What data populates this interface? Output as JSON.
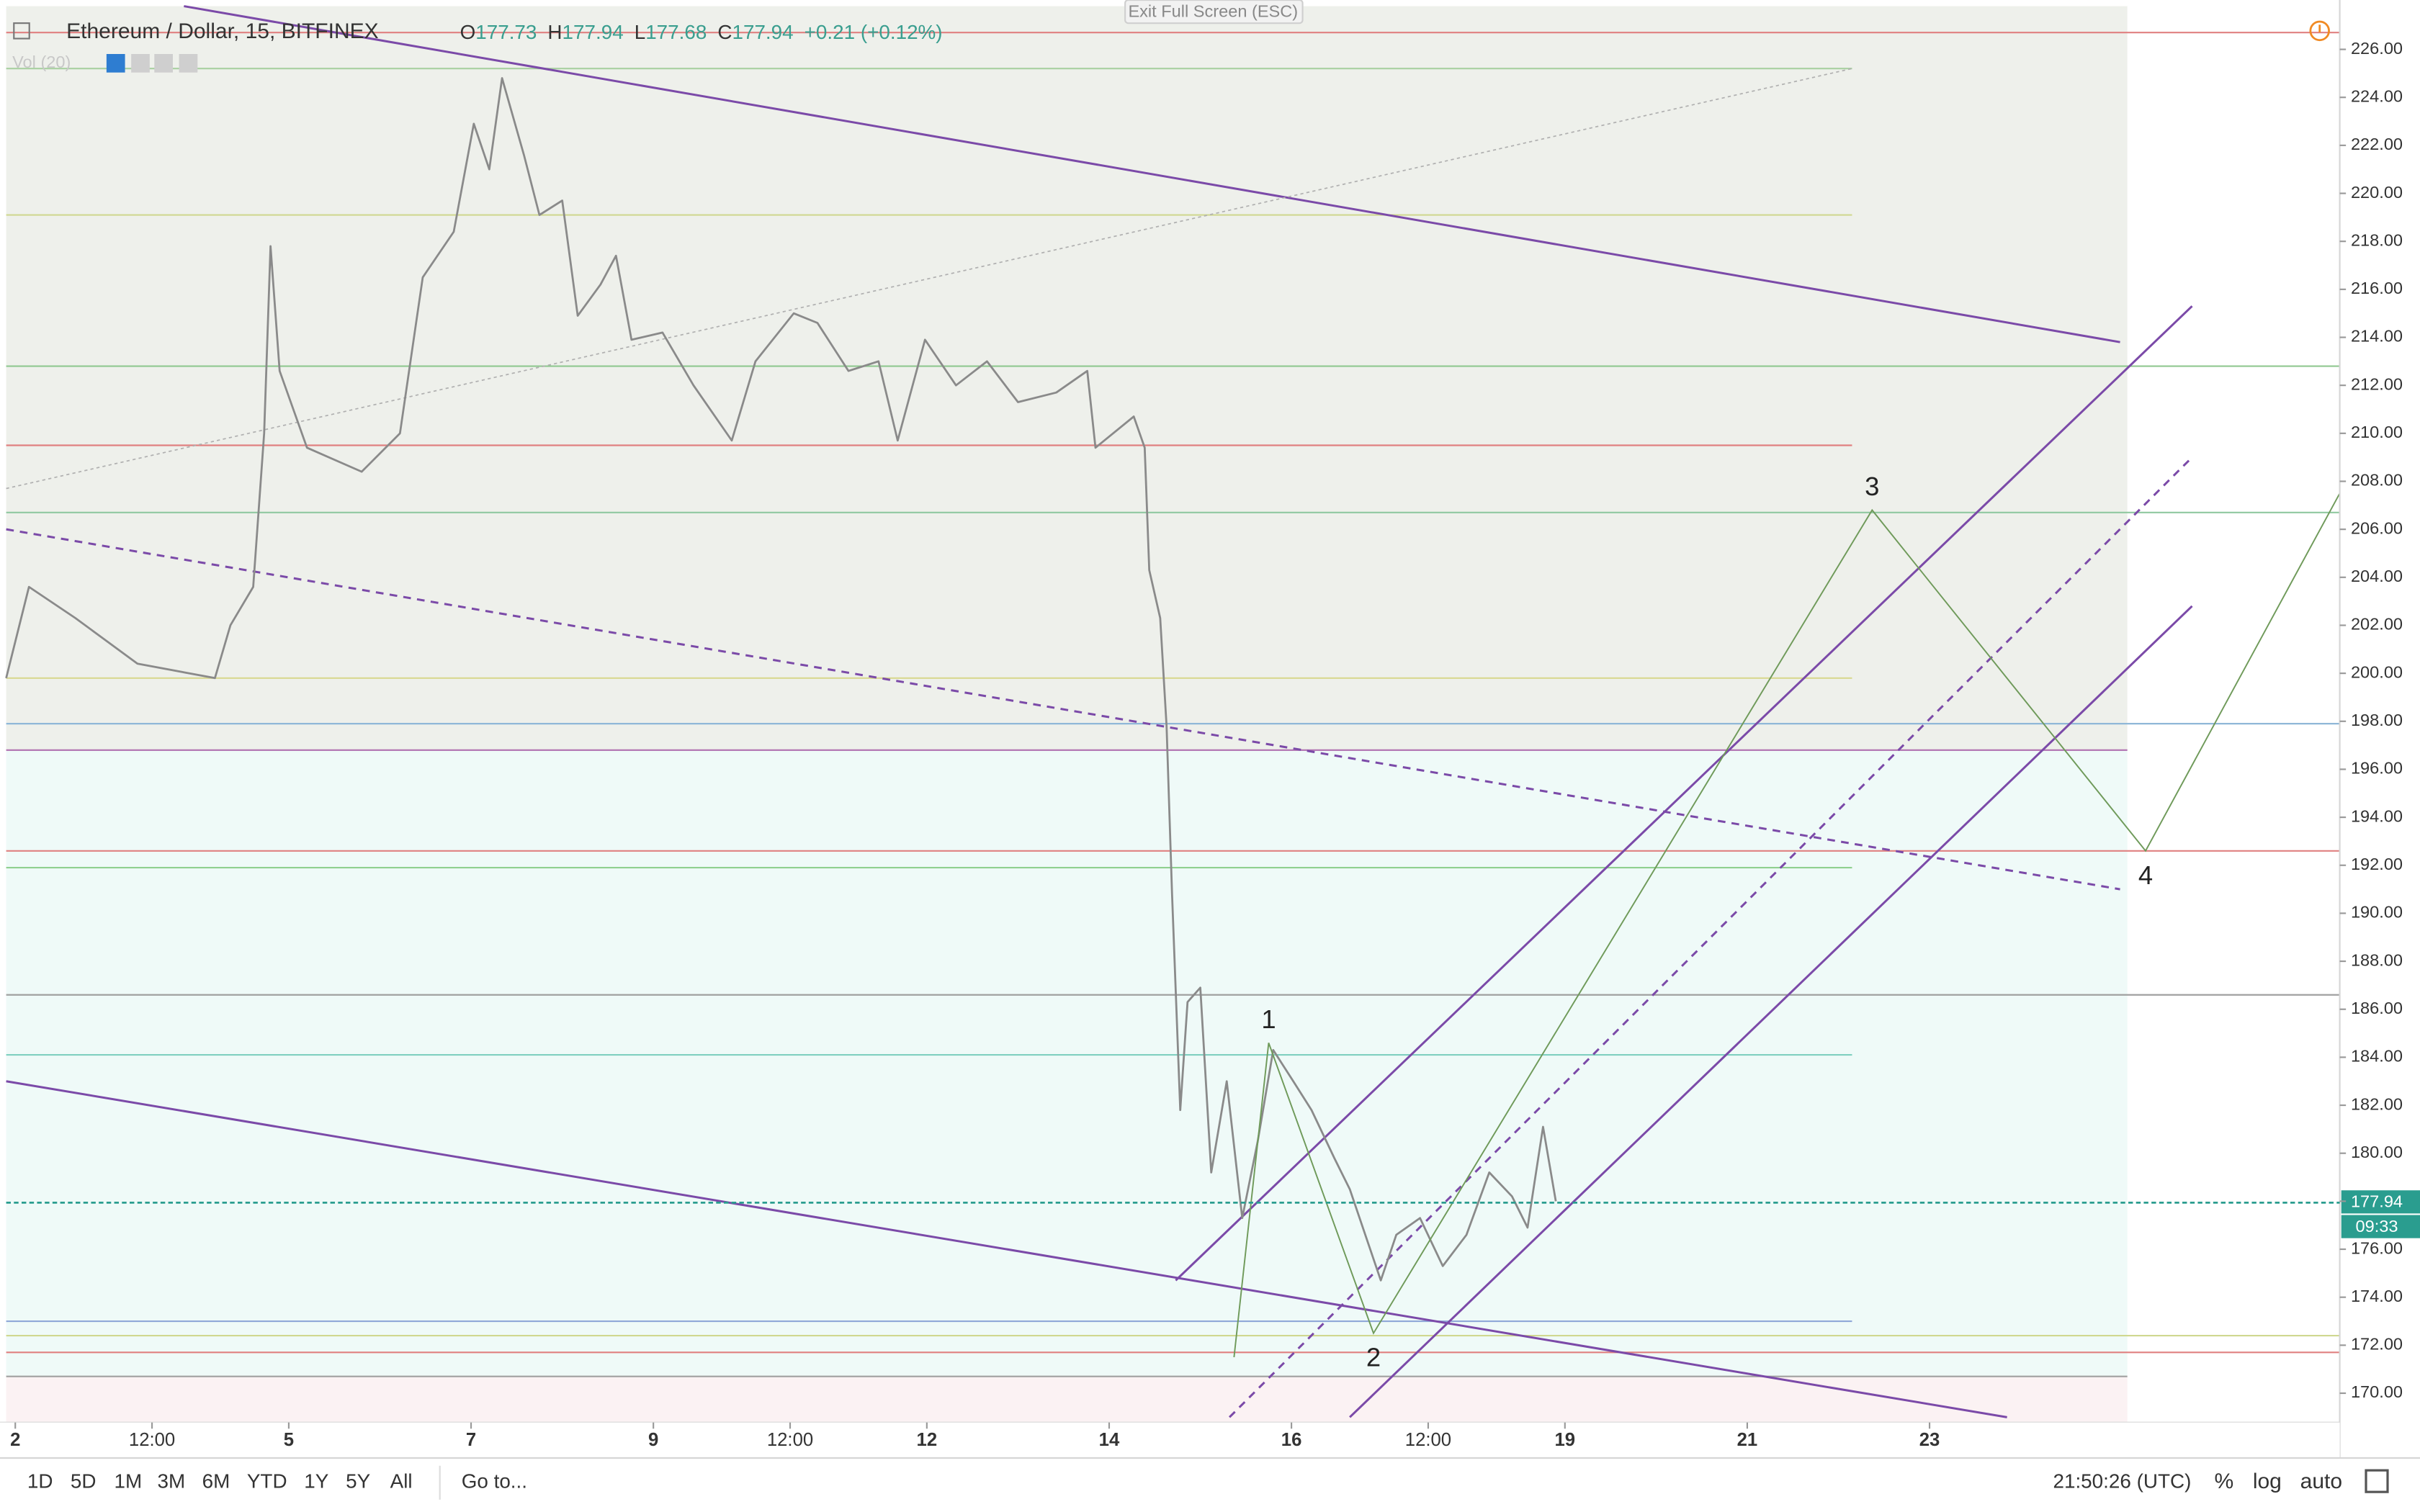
{
  "toolbar": {
    "exit_button": "Exit Full Screen (ESC)",
    "ranges": [
      "1D",
      "5D",
      "1M",
      "3M",
      "6M",
      "YTD",
      "1Y",
      "5Y",
      "All"
    ],
    "goto": "Go to...",
    "clock": "21:50:26 (UTC)",
    "scale_options": [
      "%",
      "log",
      "auto"
    ]
  },
  "chart_data": {
    "type": "line",
    "title": "Ethereum / Dollar, 15, BITFINEX",
    "ohlc": [
      {
        "name": "O",
        "value": 177.73
      },
      {
        "name": "H",
        "value": 177.94
      },
      {
        "name": "L",
        "value": 177.68
      },
      {
        "name": "C",
        "value": 177.94
      }
    ],
    "change": "+0.21 (+0.12%)",
    "indicator": "Vol (20)",
    "color": "#8a8a8a",
    "x": [
      1.9,
      2.15,
      2.66,
      3.34,
      4.19,
      4.36,
      4.61,
      4.73,
      4.8,
      4.9,
      5.2,
      5.8,
      6.22,
      6.47,
      6.81,
      7.03,
      7.2,
      7.34,
      7.58,
      7.75,
      8.0,
      8.17,
      8.42,
      8.59,
      8.76,
      9.1,
      9.44,
      9.86,
      10.12,
      10.54,
      10.8,
      11.14,
      11.47,
      11.68,
      11.98,
      12.32,
      12.66,
      13.0,
      13.42,
      13.76,
      13.85,
      14.27,
      14.39,
      14.44,
      14.56,
      14.63,
      14.69,
      14.78,
      14.86,
      15.0,
      15.12,
      15.29,
      15.46,
      15.63,
      15.8,
      16.02,
      16.22,
      16.47,
      16.64,
      16.81,
      16.98,
      17.15,
      17.41,
      17.66,
      17.92,
      18.17,
      18.42,
      18.59,
      18.76,
      18.9
    ],
    "values": [
      199.8,
      203.6,
      202.3,
      200.4,
      199.8,
      202.0,
      203.6,
      210.0,
      217.8,
      212.6,
      209.4,
      208.4,
      210.0,
      216.5,
      218.4,
      222.9,
      221.0,
      224.8,
      221.6,
      219.1,
      219.7,
      214.9,
      216.2,
      217.4,
      213.9,
      214.2,
      212.0,
      209.7,
      213.0,
      215.0,
      214.6,
      212.6,
      213.0,
      209.7,
      213.9,
      212.0,
      213.0,
      211.3,
      211.7,
      212.6,
      209.4,
      210.7,
      209.4,
      204.3,
      202.3,
      197.8,
      190.8,
      181.8,
      186.3,
      186.9,
      179.2,
      183.0,
      177.3,
      180.5,
      184.3,
      183.0,
      181.8,
      179.8,
      178.5,
      176.6,
      174.7,
      176.6,
      177.3,
      175.3,
      176.6,
      179.2,
      178.2,
      176.9,
      181.1,
      178.0
    ],
    "xlim": [
      1.9,
      27.5
    ],
    "xticks": [
      2,
      {
        "value": 3.5,
        "label": "12:00"
      },
      5,
      7,
      9,
      {
        "value": 10.5,
        "label": "12:00"
      },
      12,
      14,
      16,
      {
        "value": 17.5,
        "label": "12:00"
      },
      19,
      21,
      23
    ],
    "ylim": [
      167.3,
      227.8
    ],
    "yticks": [
      {
        "value": 170,
        "label": "170.00"
      },
      {
        "value": 172,
        "label": "172.00"
      },
      {
        "value": 174,
        "label": "174.00"
      },
      {
        "value": 176,
        "label": "176.00"
      },
      {
        "value": 178,
        "label": "178.00"
      },
      {
        "value": 180,
        "label": "180.00"
      },
      {
        "value": 182,
        "label": "182.00"
      },
      {
        "value": 184,
        "label": "184.00"
      },
      {
        "value": 186,
        "label": "186.00"
      },
      {
        "value": 188,
        "label": "188.00"
      },
      {
        "value": 190,
        "label": "190.00"
      },
      {
        "value": 192,
        "label": "192.00"
      },
      {
        "value": 194,
        "label": "194.00"
      },
      {
        "value": 196,
        "label": "196.00"
      },
      {
        "value": 198,
        "label": "198.00"
      },
      {
        "value": 200,
        "label": "200.00"
      },
      {
        "value": 202,
        "label": "202.00"
      },
      {
        "value": 204,
        "label": "204.00"
      },
      {
        "value": 206,
        "label": "206.00"
      },
      {
        "value": 208,
        "label": "208.00"
      },
      {
        "value": 210,
        "label": "210.00"
      },
      {
        "value": 212,
        "label": "212.00"
      },
      {
        "value": 214,
        "label": "214.00"
      },
      {
        "value": 216,
        "label": "216.00"
      },
      {
        "value": 218,
        "label": "218.00"
      },
      {
        "value": 220,
        "label": "220.00"
      },
      {
        "value": 222,
        "label": "222.00"
      },
      {
        "value": 224,
        "label": "224.00"
      },
      {
        "value": 226,
        "label": "226.00"
      }
    ],
    "last_price": 177.94,
    "countdown": "09:33",
    "zones": [
      {
        "low": 196.8,
        "high": 227.8,
        "color": "#eef0eb",
        "to": 25.17
      },
      {
        "low": 170.7,
        "high": 196.8,
        "color": "#effaf8",
        "to": 25.17
      },
      {
        "low": 167.3,
        "high": 170.7,
        "color": "#fbf2f3",
        "to": 25.17
      }
    ],
    "levels": [
      {
        "value": 226.7,
        "color": "#e08080",
        "to": 27.5
      },
      {
        "value": 225.2,
        "color": "#a8d0a0",
        "to": 22.15
      },
      {
        "value": 219.1,
        "color": "#d0d890",
        "to": 22.15
      },
      {
        "value": 212.8,
        "color": "#90c890",
        "to": 27.5
      },
      {
        "value": 209.5,
        "color": "#e08080",
        "to": 22.15
      },
      {
        "value": 206.7,
        "color": "#90c8a0",
        "to": 27.5
      },
      {
        "value": 199.8,
        "color": "#d8d890",
        "to": 22.15
      },
      {
        "value": 197.9,
        "color": "#90b8d8",
        "to": 27.5
      },
      {
        "value": 196.8,
        "color": "#b070b0",
        "to": 25.17
      },
      {
        "value": 192.6,
        "color": "#e08080",
        "to": 27.5
      },
      {
        "value": 191.9,
        "color": "#90d090",
        "to": 22.15
      },
      {
        "value": 186.6,
        "color": "#a0a0a0",
        "to": 27.5
      },
      {
        "value": 184.1,
        "color": "#80d0c0",
        "to": 22.15
      },
      {
        "value": 173.0,
        "color": "#90a8d8",
        "to": 22.15
      },
      {
        "value": 172.4,
        "color": "#d0d890",
        "to": 27.5
      },
      {
        "value": 171.7,
        "color": "#e08080",
        "to": 27.5
      },
      {
        "value": 170.7,
        "color": "#a0a0a0",
        "to": 25.17
      }
    ],
    "trendlines": [
      {
        "x": [
          3.85,
          25.09
        ],
        "y": [
          227.8,
          213.8
        ],
        "color": "#7b4aa8",
        "dash": "solid"
      },
      {
        "x": [
          1.9,
          25.09
        ],
        "y": [
          206.0,
          191.0
        ],
        "color": "#7b4aa8",
        "dash": "dashed"
      },
      {
        "x": [
          1.9,
          22.15
        ],
        "y": [
          207.7,
          225.2
        ],
        "color": "#b0b0b0",
        "dash": "dotted"
      },
      {
        "x": [
          1.9,
          23.85
        ],
        "y": [
          183.0,
          169.0
        ],
        "color": "#7b4aa8",
        "dash": "solid"
      },
      {
        "x": [
          14.73,
          25.88
        ],
        "y": [
          174.7,
          215.3
        ],
        "color": "#7b4aa8",
        "dash": "solid"
      },
      {
        "x": [
          15.32,
          25.88
        ],
        "y": [
          169.0,
          209.0
        ],
        "color": "#7b4aa8",
        "dash": "dashed"
      },
      {
        "x": [
          16.64,
          25.88
        ],
        "y": [
          169.0,
          202.8
        ],
        "color": "#7b4aa8",
        "dash": "solid"
      }
    ],
    "wave": {
      "color": "#6f9a5a",
      "x": [
        15.37,
        15.75,
        16.9,
        22.37,
        25.37,
        27.5
      ],
      "y": [
        171.5,
        184.6,
        172.5,
        206.8,
        192.6,
        207.5
      ],
      "labels": [
        "1",
        "2",
        "3",
        "4"
      ]
    }
  }
}
